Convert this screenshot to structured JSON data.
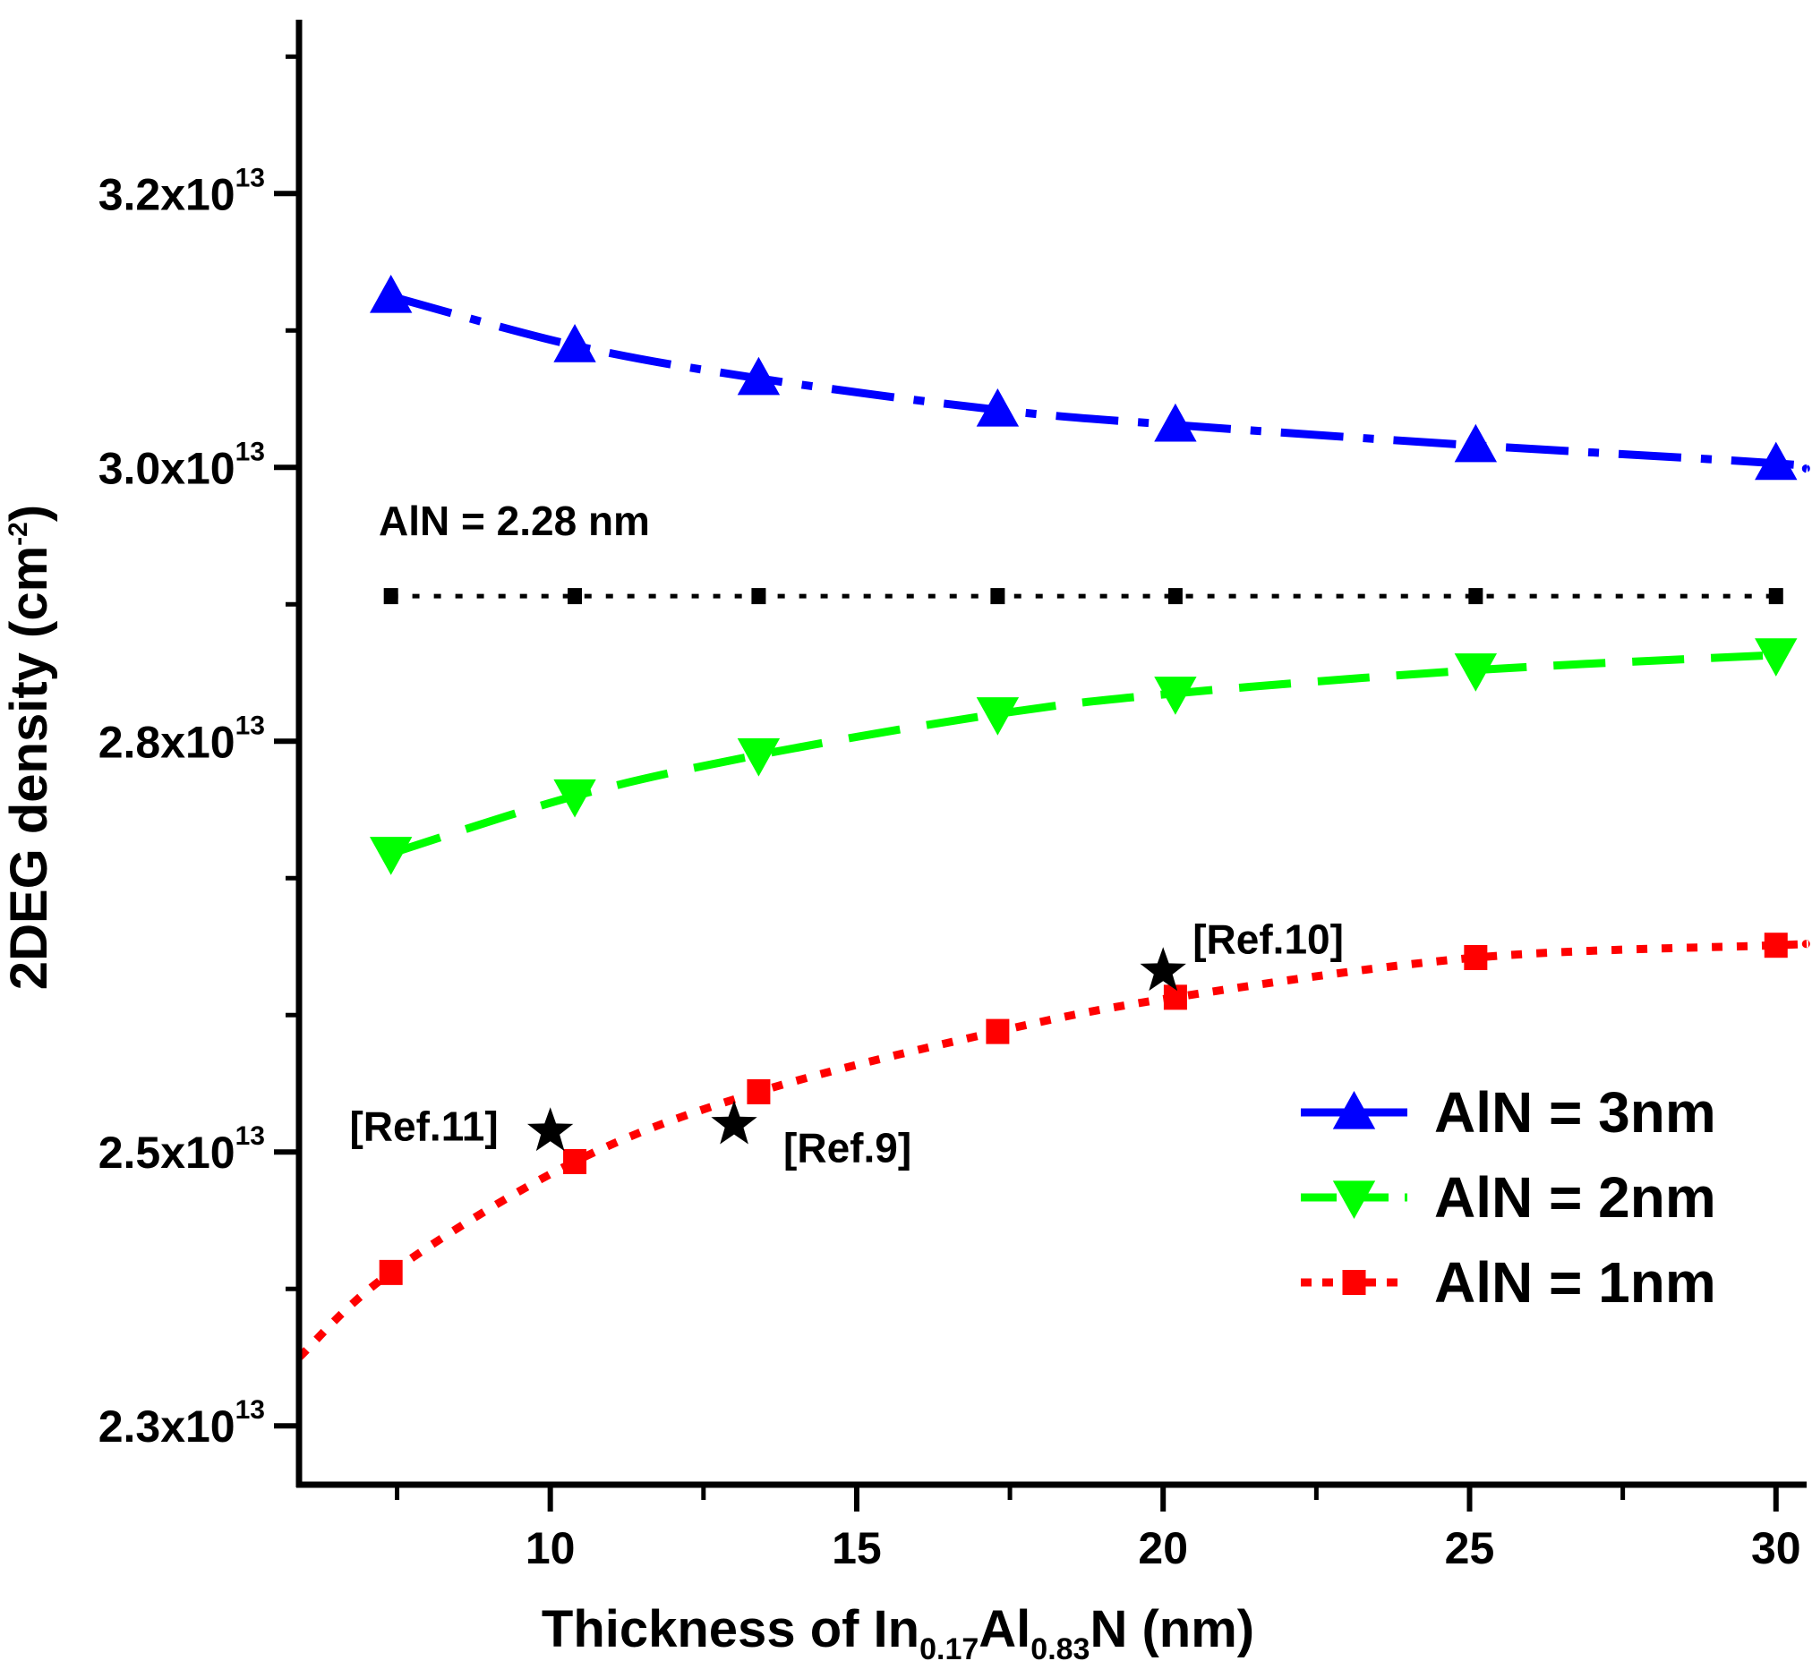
{
  "chart_data": {
    "type": "line",
    "xlabel": {
      "prefix": "Thickness of In",
      "sub1": "0.17",
      "mid": "Al",
      "sub2": "0.83",
      "suffix": "N (nm)"
    },
    "ylabel": {
      "main": "2DEG density (cm",
      "sup": "-2",
      "close": ")"
    },
    "xlim": [
      5.9,
      30.5
    ],
    "ylim": [
      2.257,
      3.327
    ],
    "x_ticks": [
      10,
      15,
      20,
      25,
      30
    ],
    "y_ticks": [
      {
        "value": 2.3,
        "mantissa": "2.3x10",
        "exp": "13"
      },
      {
        "value": 2.5,
        "mantissa": "2.5x10",
        "exp": "13"
      },
      {
        "value": 2.8,
        "mantissa": "2.8x10",
        "exp": "13"
      },
      {
        "value": 3.0,
        "mantissa": "3.0x10",
        "exp": "13"
      },
      {
        "value": 3.2,
        "mantissa": "3.2x10",
        "exp": "13"
      }
    ],
    "y_unit_note": "values in units of 10^13 cm^-2",
    "series": [
      {
        "name": "AlN = 3nm",
        "color": "#0000ff",
        "marker": "triangle-up",
        "linestyle": "dashdot",
        "x": [
          7.4,
          10.4,
          13.4,
          17.3,
          20.2,
          25.1,
          30.0
        ],
        "y": [
          3.125,
          3.089,
          3.065,
          3.042,
          3.031,
          3.016,
          3.003
        ],
        "curve_extra": [
          {
            "x": 30.5,
            "y": 2.999
          }
        ]
      },
      {
        "name": "AlN = 2nm",
        "color": "#00ff00",
        "marker": "triangle-down",
        "linestyle": "dashed",
        "x": [
          7.4,
          10.4,
          13.4,
          17.3,
          20.2,
          25.1,
          30.0
        ],
        "y": [
          2.718,
          2.76,
          2.79,
          2.82,
          2.835,
          2.852,
          2.863
        ]
      },
      {
        "name": "AlN = 1nm",
        "color": "#ff0000",
        "marker": "square",
        "linestyle": "dotted",
        "x": [
          7.4,
          10.4,
          13.4,
          17.3,
          20.2,
          25.1,
          30.0
        ],
        "y": [
          2.412,
          2.493,
          2.544,
          2.588,
          2.613,
          2.642,
          2.651
        ],
        "curve_extra": [
          {
            "x": 5.9,
            "y": 2.35
          },
          {
            "x": 30.5,
            "y": 2.652
          }
        ]
      },
      {
        "name": "AlN = 2.28 nm",
        "color": "#000000",
        "marker": "small-square",
        "linestyle": "dotted",
        "x": [
          7.4,
          10.4,
          13.4,
          17.3,
          20.2,
          25.1,
          30.0
        ],
        "y": [
          2.906,
          2.906,
          2.906,
          2.906,
          2.906,
          2.906,
          2.906
        ],
        "annotation": "AlN = 2.28 nm"
      }
    ],
    "reference_points": [
      {
        "label": "[Ref.11]",
        "x": 10.0,
        "y": 2.515
      },
      {
        "label": "[Ref.9]",
        "x": 13.0,
        "y": 2.52
      },
      {
        "label": "[Ref.10]",
        "x": 20.0,
        "y": 2.632
      }
    ],
    "legend": {
      "position": "bottom-right",
      "entries": [
        "AlN = 3nm",
        "AlN = 2nm",
        "AlN = 1nm"
      ]
    },
    "grid": false
  }
}
